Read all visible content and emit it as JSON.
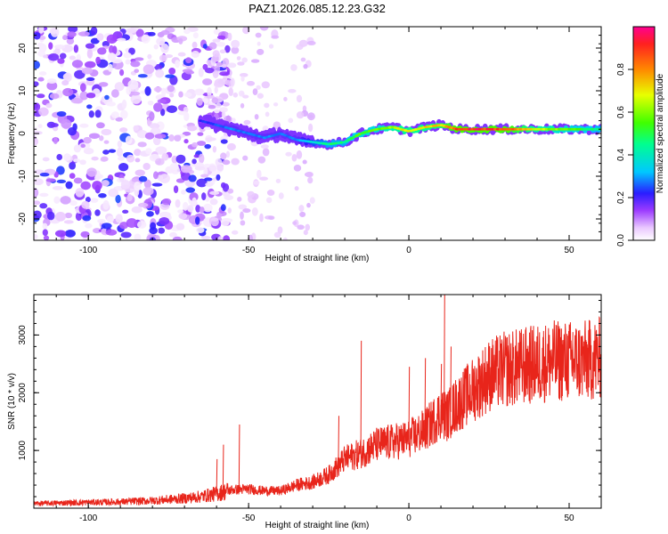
{
  "chart_data": [
    {
      "type": "heatmap",
      "title": "PAZ1.2026.085.12.23.G32",
      "xlabel": "Height of straight line (km)",
      "ylabel": "Frequency (Hz)",
      "xlim": [
        -117,
        60
      ],
      "ylim": [
        -25,
        25
      ],
      "xticks": [
        -100,
        -50,
        0,
        50
      ],
      "yticks": [
        -20,
        -10,
        0,
        10,
        20
      ],
      "colorbar": {
        "label": "Normalized spectral amplitude",
        "range": [
          0,
          1
        ],
        "ticks": [
          0.0,
          0.2,
          0.4,
          0.6,
          0.8
        ],
        "tick_labels": [
          "0.0",
          "0.2",
          "0.4",
          "0.6",
          "0.8"
        ]
      },
      "ridge": {
        "x": [
          -65,
          -55,
          -45,
          -40,
          -35,
          -30,
          -25,
          -20,
          -15,
          -10,
          -5,
          0,
          5,
          10,
          15,
          20,
          30,
          40,
          50,
          60
        ],
        "freq": [
          3,
          1,
          -1,
          0,
          -1.5,
          -2,
          -2.5,
          -2,
          0,
          1,
          1.5,
          0.5,
          1.5,
          2,
          1,
          1,
          1,
          1,
          1,
          1
        ],
        "amplitude": [
          0.25,
          0.3,
          0.3,
          0.3,
          0.3,
          0.4,
          0.5,
          0.5,
          0.6,
          0.6,
          0.7,
          0.75,
          0.75,
          0.8,
          0.95,
          1.0,
          0.95,
          0.7,
          0.6,
          0.5
        ]
      },
      "noise_region": {
        "x_range": [
          -117,
          -62
        ],
        "freq_range": [
          -25,
          25
        ],
        "amplitude_range": [
          0.02,
          0.25
        ]
      }
    },
    {
      "type": "line",
      "xlabel": "Height of straight line (km)",
      "ylabel": "SNR (10 * v/v)",
      "xlim": [
        -117,
        60
      ],
      "ylim": [
        0,
        3700
      ],
      "xticks": [
        -100,
        -50,
        0,
        50
      ],
      "yticks": [
        1000,
        2000,
        3000
      ],
      "color": "#e8251b",
      "series": [
        {
          "name": "SNR",
          "x": [
            -117,
            -110,
            -100,
            -90,
            -80,
            -70,
            -65,
            -60,
            -55,
            -50,
            -45,
            -40,
            -35,
            -30,
            -25,
            -20,
            -15,
            -10,
            -5,
            0,
            5,
            10,
            12,
            15,
            20,
            25,
            30,
            35,
            40,
            45,
            50,
            55,
            60
          ],
          "values": [
            80,
            90,
            100,
            110,
            130,
            170,
            200,
            250,
            320,
            330,
            300,
            300,
            400,
            450,
            580,
            850,
            950,
            1100,
            1150,
            1200,
            1350,
            1650,
            1600,
            1800,
            2050,
            2300,
            2400,
            2450,
            2500,
            2550,
            2550,
            2550,
            2600
          ]
        }
      ],
      "spikes": [
        {
          "x": -60,
          "value": 850
        },
        {
          "x": -58,
          "value": 1100
        },
        {
          "x": -53,
          "value": 1450
        },
        {
          "x": -22,
          "value": 1600
        },
        {
          "x": -15,
          "value": 2900
        },
        {
          "x": 0,
          "value": 2450
        },
        {
          "x": 5,
          "value": 2600
        },
        {
          "x": 10,
          "value": 2500
        },
        {
          "x": 11,
          "value": 3700
        },
        {
          "x": 13,
          "value": 2800
        },
        {
          "x": 51,
          "value": 3050
        }
      ]
    }
  ]
}
